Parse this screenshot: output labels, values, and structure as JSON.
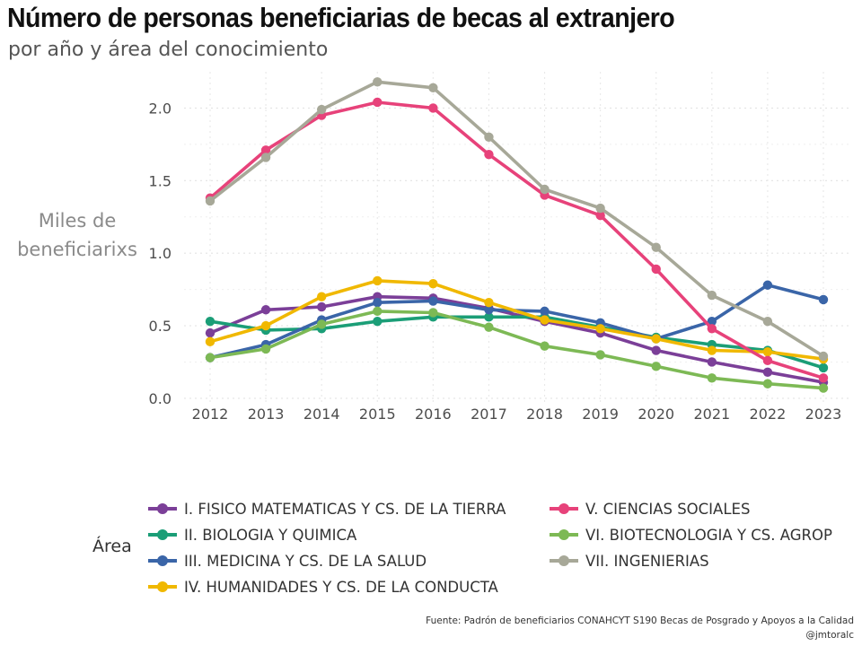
{
  "title": "Número de personas beneficiarias de becas al extranjero",
  "subtitle": "por año y área del conocimiento",
  "legend_title": "Área",
  "source_line1": "Fuente: Padrón de beneficiarios CONAHCYT S190 Becas de Posgrado y Apoyos a la Calidad",
  "source_line2": "@jmtoralc",
  "chart_data": {
    "type": "line",
    "title": "Número de personas beneficiarias de becas al extranjero",
    "subtitle": "por año y área del conocimiento",
    "xlabel": "",
    "ylabel": "Miles de beneficiarixs",
    "ylabel_lines": [
      "Miles de",
      "beneficiarixs"
    ],
    "x": [
      "2012",
      "2013",
      "2014",
      "2015",
      "2016",
      "2017",
      "2018",
      "2019",
      "2020",
      "2021",
      "2022",
      "2023"
    ],
    "yticks": [
      "0.0",
      "0.5",
      "1.0",
      "1.5",
      "2.0"
    ],
    "ylim": [
      -0.05,
      2.25
    ],
    "grid": true,
    "legend_position": "bottom",
    "series": [
      {
        "name": "I. FISICO MATEMATICAS Y CS. DE LA TIERRA",
        "color": "#7B3F98",
        "values": [
          0.45,
          0.61,
          0.63,
          0.7,
          0.69,
          0.62,
          0.53,
          0.45,
          0.33,
          0.25,
          0.18,
          0.11
        ]
      },
      {
        "name": "II. BIOLOGIA Y QUIMICA",
        "color": "#1B9E77",
        "values": [
          0.53,
          0.47,
          0.48,
          0.53,
          0.56,
          0.56,
          0.56,
          0.49,
          0.42,
          0.37,
          0.33,
          0.21
        ]
      },
      {
        "name": "III. MEDICINA Y CS. DE LA SALUD",
        "color": "#3A65A8",
        "values": [
          0.28,
          0.37,
          0.54,
          0.66,
          0.67,
          0.61,
          0.6,
          0.52,
          0.41,
          0.53,
          0.78,
          0.68
        ]
      },
      {
        "name": "IV. HUMANIDADES Y CS. DE LA CONDUCTA",
        "color": "#F0B800",
        "values": [
          0.39,
          0.5,
          0.7,
          0.81,
          0.79,
          0.66,
          0.54,
          0.48,
          0.41,
          0.33,
          0.32,
          0.27
        ]
      },
      {
        "name": "V. CIENCIAS SOCIALES",
        "color": "#E7427A",
        "values": [
          1.38,
          1.71,
          1.95,
          2.04,
          2.0,
          1.68,
          1.4,
          1.26,
          0.89,
          0.48,
          0.26,
          0.14
        ]
      },
      {
        "name": "VI. BIOTECNOLOGIA Y CS. AGROP",
        "color": "#7DB955",
        "values": [
          0.28,
          0.34,
          0.51,
          0.6,
          0.59,
          0.49,
          0.36,
          0.3,
          0.22,
          0.14,
          0.1,
          0.07
        ]
      },
      {
        "name": "VII. INGENIERIAS",
        "color": "#A7A898",
        "values": [
          1.36,
          1.66,
          1.99,
          2.18,
          2.14,
          1.8,
          1.44,
          1.31,
          1.04,
          0.71,
          0.53,
          0.29
        ]
      }
    ]
  }
}
